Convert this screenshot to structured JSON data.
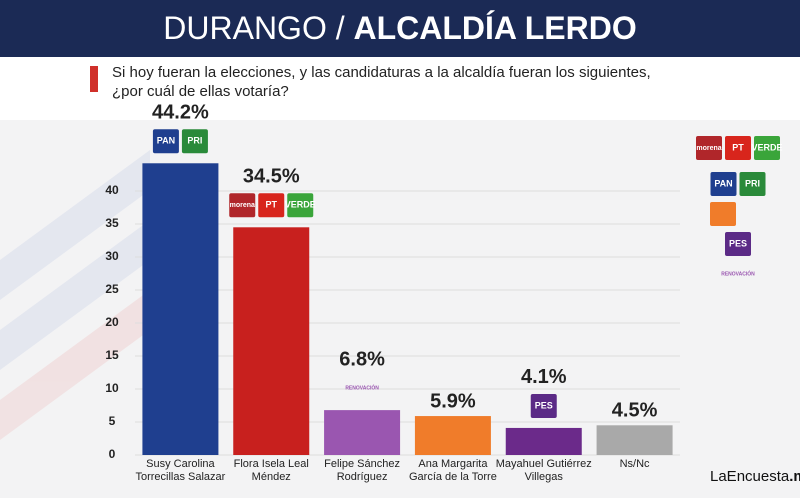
{
  "header": {
    "title_light": "DURANGO /",
    "title_bold": "ALCALDÍA LERDO"
  },
  "question": [
    "Si hoy fueran la elecciones, y las candidaturas a la alcaldía fueran los siguientes,",
    "¿por cuál de ellas votaría?"
  ],
  "brand": [
    "LaEncuesta",
    ".mx"
  ],
  "chart_data": {
    "type": "bar",
    "categories": [
      "Susy Carolina Torrecillas Salazar",
      "Flora Isela Leal Méndez",
      "Felipe Sánchez Rodríguez",
      "Ana Margarita García de la Torre",
      "Mayahuel Gutiérrez Villegas",
      "Ns/Nc"
    ],
    "values": [
      44.2,
      34.5,
      6.8,
      5.9,
      4.1,
      4.5
    ],
    "value_labels": [
      "44.2%",
      "34.5%",
      "6.8%",
      "5.9%",
      "4.1%",
      "4.5%"
    ],
    "colors": [
      "#1f3f8f",
      "#c8201e",
      "#9a56b0",
      "#f07c2a",
      "#6b2a8a",
      "#a9a9a9"
    ],
    "logos": [
      [
        "PAN",
        "PRI"
      ],
      [
        "morena",
        "PT",
        "VERDE"
      ],
      [
        "RENOVACIÓN"
      ],
      [],
      [
        "PES"
      ],
      []
    ],
    "ylim": [
      0,
      46
    ],
    "yticks": [
      0,
      5,
      10,
      15,
      20,
      25,
      30,
      35,
      40
    ],
    "grid": true
  }
}
